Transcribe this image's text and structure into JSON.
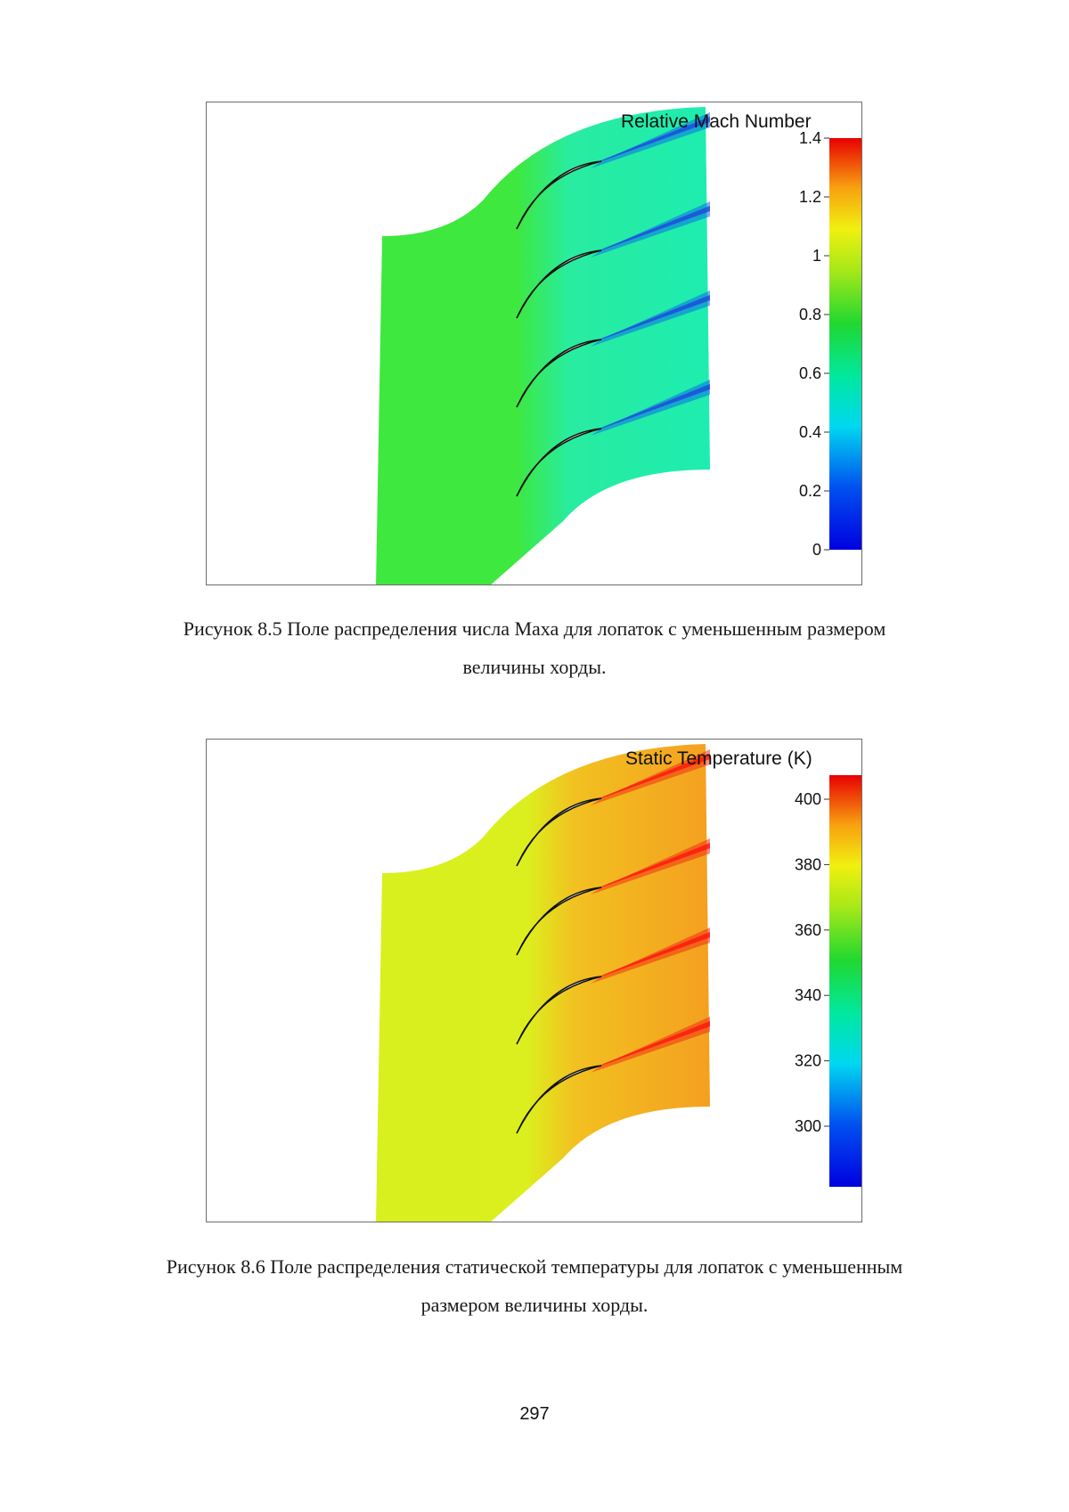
{
  "figures": [
    {
      "id": "mach",
      "legend_title": "Relative Mach Number",
      "colormap": "rainbow-blue-to-red",
      "colorbar": {
        "min": 0,
        "max": 1.4,
        "ticks": [
          "1.4",
          "1.2",
          "1",
          "0.8",
          "0.6",
          "0.4",
          "0.2",
          "0"
        ]
      },
      "colors": {
        "inlet": "#3ee83e",
        "passage": "#1eedb0",
        "wake": "#0a6ee8",
        "wake_core": "#2040e0"
      },
      "blade_count": 4,
      "caption_line1": "Рисунок 8.5 Поле распределения числа Маха для лопаток с уменьшенным размером",
      "caption_line2": "величины хорды."
    },
    {
      "id": "temperature",
      "legend_title": "Static Temperature (K)",
      "colormap": "rainbow-blue-to-red",
      "colorbar": {
        "ticks": [
          "400",
          "380",
          "360",
          "340",
          "320",
          "300"
        ]
      },
      "colors": {
        "inlet": "#d8f01e",
        "passage": "#f4a020",
        "wake": "#f03010",
        "wake_core": "#ff1010"
      },
      "blade_count": 4,
      "caption_line1": "Рисунок 8.6 Поле распределения статической температуры для лопаток с уменьшенным",
      "caption_line2": "размером величины хорды."
    }
  ],
  "page_number": "297"
}
